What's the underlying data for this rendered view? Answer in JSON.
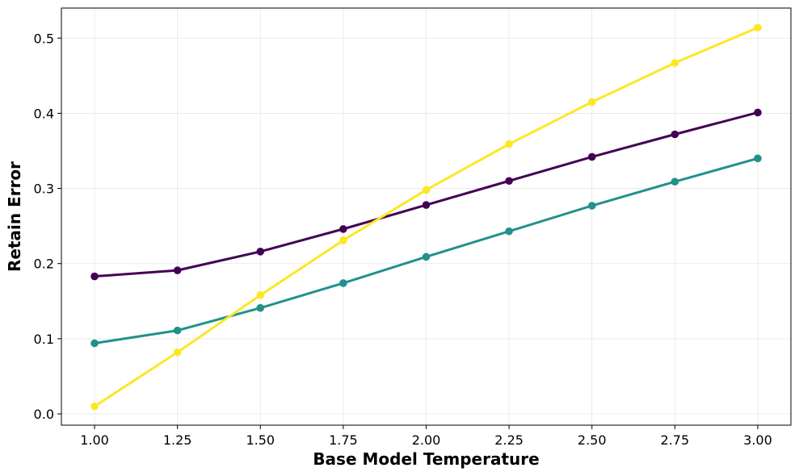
{
  "chart_data": {
    "type": "line",
    "xlabel": "Base Model Temperature",
    "ylabel": "Retain Error",
    "xlim": [
      0.9,
      3.1
    ],
    "ylim": [
      -0.015,
      0.54
    ],
    "xticks": [
      1.0,
      1.25,
      1.5,
      1.75,
      2.0,
      2.25,
      2.5,
      2.75,
      3.0
    ],
    "xtick_labels": [
      "1.00",
      "1.25",
      "1.50",
      "1.75",
      "2.00",
      "2.25",
      "2.50",
      "2.75",
      "3.00"
    ],
    "yticks": [
      0.0,
      0.1,
      0.2,
      0.3,
      0.4,
      0.5
    ],
    "ytick_labels": [
      "0.0",
      "0.1",
      "0.2",
      "0.3",
      "0.4",
      "0.5"
    ],
    "grid": true,
    "x": [
      1.0,
      1.25,
      1.5,
      1.75,
      2.0,
      2.25,
      2.5,
      2.75,
      3.0
    ],
    "series": [
      {
        "color": "#440154",
        "values": [
          0.183,
          0.191,
          0.216,
          0.246,
          0.278,
          0.31,
          0.342,
          0.372,
          0.401
        ]
      },
      {
        "color": "#21918c",
        "values": [
          0.094,
          0.111,
          0.141,
          0.174,
          0.209,
          0.243,
          0.277,
          0.309,
          0.34
        ]
      },
      {
        "color": "#fde725",
        "values": [
          0.01,
          0.082,
          0.158,
          0.231,
          0.298,
          0.359,
          0.415,
          0.467,
          0.514
        ]
      }
    ]
  }
}
